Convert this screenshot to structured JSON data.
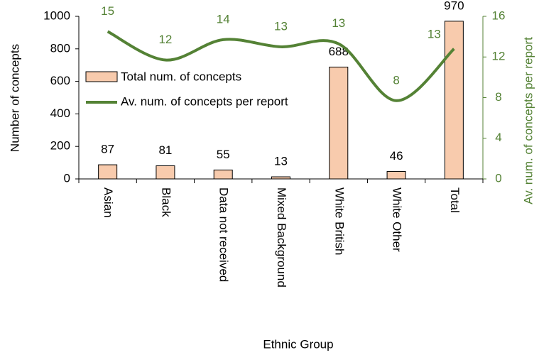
{
  "chart_data": {
    "type": "bar-line",
    "categories": [
      "Asian",
      "Black",
      "Data not received",
      "Mixed Background",
      "White British",
      "White Other",
      "Total"
    ],
    "series": [
      {
        "name": "Total num. of concepts",
        "type": "bar",
        "color": "#f8cbad",
        "values": [
          87,
          81,
          55,
          13,
          688,
          46,
          970
        ]
      },
      {
        "name": "Av. num. of concepts per report",
        "type": "line",
        "axis": "y2",
        "color": "#548235",
        "values": [
          14.5,
          11.7,
          13.7,
          13.0,
          13.3,
          7.7,
          12.8
        ],
        "value_labels": [
          "15",
          "12",
          "14",
          "13",
          "13",
          "8",
          "13"
        ]
      }
    ],
    "xlabel": "Ethnic Group",
    "ylabel": "Number of concepts",
    "y2label": "Av. num. of concepts per report",
    "ylim": [
      0,
      1000
    ],
    "yticks": [
      0,
      200,
      400,
      600,
      800,
      1000
    ],
    "y2lim": [
      0,
      16
    ],
    "y2ticks": [
      0,
      4,
      8,
      12,
      16
    ],
    "legend": "left"
  }
}
